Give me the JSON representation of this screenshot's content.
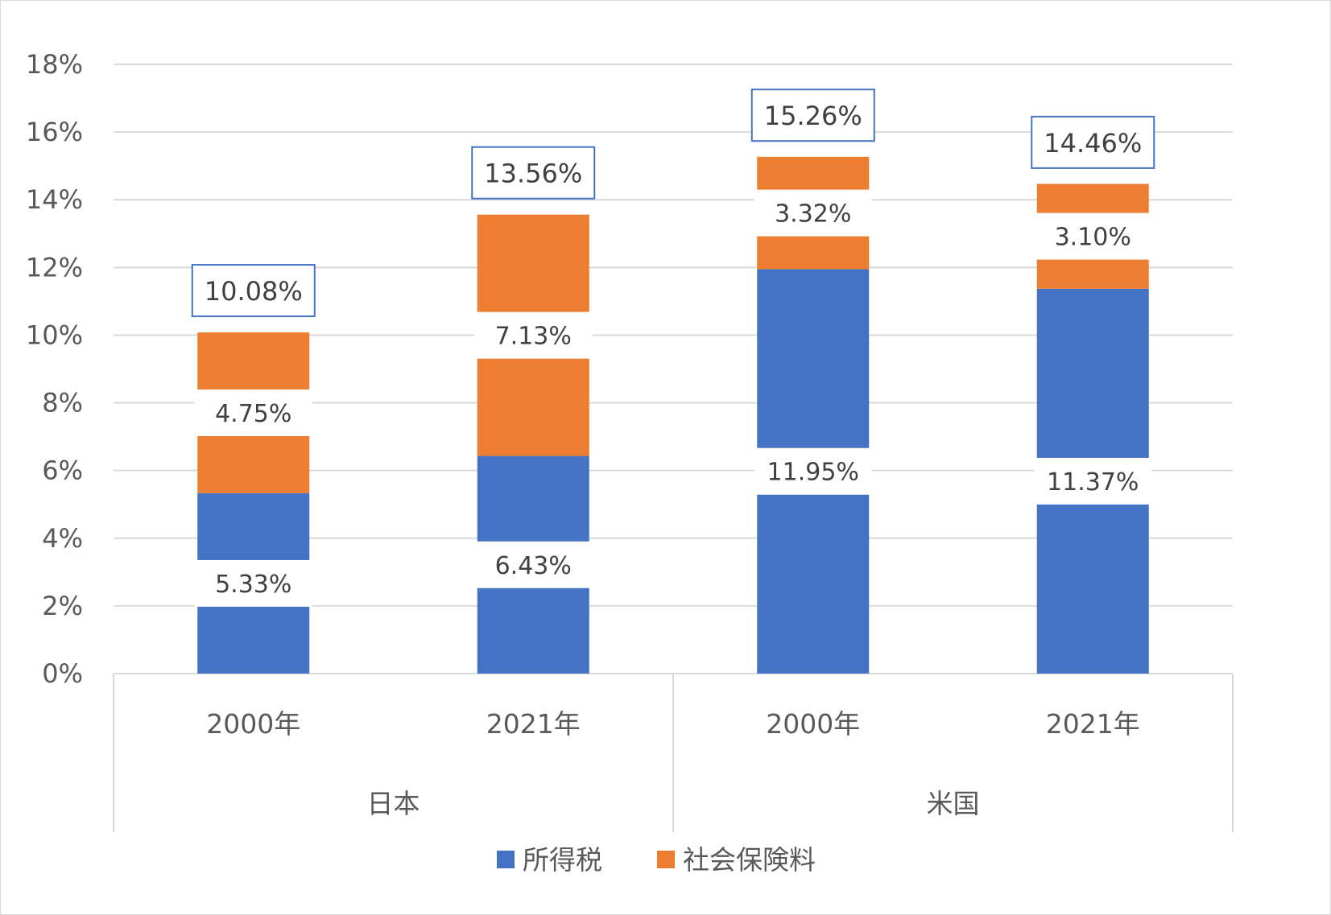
{
  "chart_data": {
    "type": "bar",
    "stacked": true,
    "title": "",
    "groups": [
      {
        "label": "日本",
        "categories": [
          "2000年",
          "2021年"
        ]
      },
      {
        "label": "米国",
        "categories": [
          "2000年",
          "2021年"
        ]
      }
    ],
    "categories": [
      "2000年",
      "2021年",
      "2000年",
      "2021年"
    ],
    "series": [
      {
        "name": "所得税",
        "color": "#4472C4",
        "values": [
          5.33,
          6.43,
          11.95,
          11.37
        ],
        "labels": [
          "5.33%",
          "6.43%",
          "11.95%",
          "11.37%"
        ]
      },
      {
        "name": "社会保険料",
        "color": "#ED7D31",
        "values": [
          4.75,
          7.13,
          3.32,
          3.1
        ],
        "labels": [
          "4.75%",
          "7.13%",
          "3.32%",
          "3.10%"
        ]
      }
    ],
    "totals": [
      10.08,
      13.56,
      15.26,
      14.46
    ],
    "total_labels": [
      "10.08%",
      "13.56%",
      "15.26%",
      "14.46%"
    ],
    "ylim": [
      0,
      18
    ],
    "yticks": [
      0,
      2,
      4,
      6,
      8,
      10,
      12,
      14,
      16,
      18
    ],
    "ytick_labels": [
      "0%",
      "2%",
      "4%",
      "6%",
      "8%",
      "10%",
      "12%",
      "14%",
      "16%",
      "18%"
    ],
    "grid": true,
    "legend_position": "bottom",
    "colors": {
      "grid": "#d9d9d9",
      "total_box": "#4472C4",
      "text": "#595959"
    }
  }
}
